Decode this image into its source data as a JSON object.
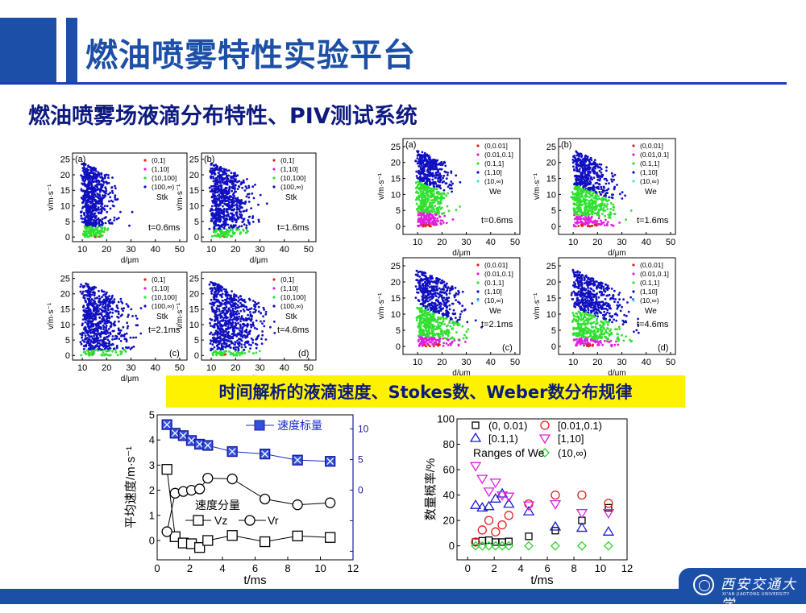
{
  "header": {
    "title": "燃油喷雾特性实验平台",
    "subtitle": "燃油喷雾场液滴分布特性、PIV测试系统"
  },
  "banner": {
    "text": "时间解析的液滴速度、Stokes数、Weber数分布规律"
  },
  "footer": {
    "logo_cn": "西安交通大学",
    "logo_en": "XI'AN JIAOTONG UNIVERSITY"
  },
  "colors": {
    "accent": "#1b4fa8",
    "title": "#1c4fa6",
    "subtitle": "#0d1a80",
    "banner": "#fff200",
    "red": "#e02020",
    "magenta": "#e020e0",
    "green": "#30e030",
    "blue": "#1010c0",
    "cyan": "#40e0e0"
  },
  "chart_data": [
    {
      "type": "scatter",
      "id": "stk-a",
      "panel": "(a)",
      "time": "t=0.6ms",
      "legend_title": "Stk",
      "legend": [
        "(0,1]",
        "(1,10]",
        "(10,100]",
        "(100,∞)"
      ],
      "xlabel": "d/μm",
      "ylabel": "v/m·s⁻¹",
      "xticks": [
        10,
        20,
        30,
        40,
        50
      ],
      "yticks": [
        0,
        5,
        10,
        15,
        20,
        25
      ],
      "xlim": [
        6,
        53
      ],
      "ylim": [
        -1.5,
        27
      ]
    },
    {
      "type": "scatter",
      "id": "stk-b",
      "panel": "(b)",
      "time": "t=1.6ms",
      "legend_title": "Stk",
      "legend": [
        "(0,1]",
        "(1,10]",
        "(10,100]",
        "(100,∞)"
      ],
      "xlabel": "d/μm",
      "ylabel": "v/m·s⁻¹",
      "xticks": [
        10,
        20,
        30,
        40,
        50
      ],
      "yticks": [
        0,
        5,
        10,
        15,
        20,
        25
      ],
      "xlim": [
        6,
        53
      ],
      "ylim": [
        -1.5,
        27
      ]
    },
    {
      "type": "scatter",
      "id": "stk-c",
      "panel": "(c)",
      "time": "t=2.1ms",
      "legend_title": "Stk",
      "legend": [
        "(0,1]",
        "(1,10]",
        "(10,100]",
        "(100,∞)"
      ],
      "xlabel": "d/μm",
      "ylabel": "v/m·s⁻¹",
      "xticks": [
        10,
        20,
        30,
        40,
        50
      ],
      "yticks": [
        0,
        5,
        10,
        15,
        20,
        25
      ],
      "xlim": [
        6,
        53
      ],
      "ylim": [
        -1.5,
        27
      ]
    },
    {
      "type": "scatter",
      "id": "stk-d",
      "panel": "(d)",
      "time": "t=4.6ms",
      "legend_title": "Stk",
      "legend": [
        "(0,1]",
        "(1,10]",
        "(10,100]",
        "(100,∞)"
      ],
      "xlabel": "d/μm",
      "ylabel": "v/m·s⁻¹",
      "xticks": [
        10,
        20,
        30,
        40,
        50
      ],
      "yticks": [
        0,
        5,
        10,
        15,
        20,
        25
      ],
      "xlim": [
        6,
        53
      ],
      "ylim": [
        -1.5,
        27
      ]
    },
    {
      "type": "scatter",
      "id": "we-a",
      "panel": "(a)",
      "time": "t=0.6ms",
      "legend_title": "We",
      "legend": [
        "(0,0.01]",
        "(0.01,0.1]",
        "(0.1,1]",
        "(1,10]",
        "(10,∞)"
      ],
      "xlabel": "d/μm",
      "ylabel": "v/m·s⁻¹",
      "xticks": [
        10,
        20,
        30,
        40,
        50
      ],
      "yticks": [
        0,
        5,
        10,
        15,
        20,
        25
      ],
      "xlim": [
        4,
        52
      ],
      "ylim": [
        -2.5,
        27.5
      ]
    },
    {
      "type": "scatter",
      "id": "we-b",
      "panel": "(b)",
      "time": "t=1.6ms",
      "legend_title": "We",
      "legend": [
        "(0,0.01]",
        "(0.01,0.1]",
        "(0.1,1]",
        "(1,10]",
        "(10,∞)"
      ],
      "xlabel": "d/μm",
      "ylabel": "v/m·s⁻¹",
      "xticks": [
        10,
        20,
        30,
        40,
        50
      ],
      "yticks": [
        0,
        5,
        10,
        15,
        20,
        25
      ],
      "xlim": [
        4,
        52
      ],
      "ylim": [
        -2.5,
        27.5
      ]
    },
    {
      "type": "scatter",
      "id": "we-c",
      "panel": "(c)",
      "time": "t=2.1ms",
      "legend_title": "We",
      "legend": [
        "(0,0.01]",
        "(0.01,0.1]",
        "(0.1,1]",
        "(1,10]",
        "(10,∞)"
      ],
      "xlabel": "d/μm",
      "ylabel": "v/m·s⁻¹",
      "xticks": [
        10,
        20,
        30,
        40,
        50
      ],
      "yticks": [
        0,
        5,
        10,
        15,
        20,
        25
      ],
      "xlim": [
        4,
        52
      ],
      "ylim": [
        -2.5,
        27.5
      ]
    },
    {
      "type": "scatter",
      "id": "we-d",
      "panel": "(d)",
      "time": "t=4.6ms",
      "legend_title": "We",
      "legend": [
        "(0,0.01]",
        "(0.01,0.1]",
        "(0.1,1]",
        "(1,10]",
        "(10,∞)"
      ],
      "xlabel": "d/μm",
      "ylabel": "v/m·s⁻¹",
      "xticks": [
        10,
        20,
        30,
        40,
        50
      ],
      "yticks": [
        0,
        5,
        10,
        15,
        20,
        25
      ],
      "xlim": [
        4,
        52
      ],
      "ylim": [
        -2.5,
        27.5
      ]
    },
    {
      "type": "line",
      "id": "velocity",
      "xlabel": "t/ms",
      "ylabel": "平均速度/m·s⁻¹",
      "xlim": [
        0,
        12
      ],
      "ylim": [
        -0.77,
        5
      ],
      "xticks": [
        0,
        2,
        4,
        6,
        8,
        10,
        12
      ],
      "yticks": [
        0,
        1,
        2,
        3,
        4,
        5
      ],
      "y2lim": [
        -11.4,
        12.3
      ],
      "y2ticks": [
        -10,
        -5,
        0,
        5,
        10
      ],
      "y2ticklabels": [
        "",
        "",
        "0",
        "5",
        "10"
      ],
      "x": [
        0.6,
        1.1,
        1.6,
        2.1,
        2.6,
        3.1,
        4.6,
        6.6,
        8.6,
        10.6
      ],
      "legend_group": "速度分量",
      "series": [
        {
          "name": "Vz",
          "axis": "left",
          "marker": "square",
          "values": [
            2.83,
            0.15,
            -0.1,
            -0.13,
            -0.28,
            0,
            0.2,
            -0.05,
            0.18,
            0.12
          ]
        },
        {
          "name": "Vr",
          "axis": "left",
          "marker": "circle",
          "values": [
            0.35,
            1.88,
            1.95,
            2.0,
            2.05,
            2.48,
            2.45,
            1.65,
            1.42,
            1.5
          ]
        },
        {
          "name": "速度标量",
          "axis": "right",
          "marker": "square-x",
          "values": [
            10.7,
            9.3,
            8.9,
            8.1,
            7.5,
            7.3,
            6.3,
            5.9,
            4.9,
            4.7
          ]
        }
      ]
    },
    {
      "type": "scatter",
      "id": "we-probability",
      "xlabel": "t/ms",
      "ylabel": "数量概率/%",
      "xlim": [
        -0.8,
        12
      ],
      "ylim": [
        -11,
        100
      ],
      "xticks": [
        0,
        2,
        4,
        6,
        8,
        10,
        12
      ],
      "yticks": [
        0,
        20,
        40,
        60,
        80,
        100
      ],
      "legend_title": "Ranges of We",
      "x": [
        0.6,
        1.1,
        1.6,
        2.1,
        2.6,
        3.1,
        4.6,
        6.6,
        8.6,
        10.6
      ],
      "series": [
        {
          "name": "(0, 0.01)",
          "marker": "square",
          "color": "#000000",
          "values": [
            3,
            4,
            4.5,
            3,
            3,
            3.5,
            7.5,
            12,
            20,
            30
          ]
        },
        {
          "name": "[0.01,0.1)",
          "marker": "circle",
          "color": "#e02020",
          "values": [
            3,
            12.5,
            20,
            11,
            16.5,
            24,
            33,
            40,
            40,
            33.5
          ]
        },
        {
          "name": "[0.1,1)",
          "marker": "triangle-up",
          "color": "#1a1ad0",
          "values": [
            32,
            30,
            31,
            37,
            41,
            33,
            27,
            15,
            14,
            11
          ]
        },
        {
          "name": "[1,10]",
          "marker": "triangle-down",
          "color": "#e020e0",
          "values": [
            63,
            53,
            43,
            50,
            40,
            39,
            32,
            33,
            26,
            26
          ]
        },
        {
          "name": "(10,∞)",
          "marker": "diamond",
          "color": "#30d030",
          "values": [
            0,
            0,
            0,
            0,
            0,
            0,
            0,
            0,
            0,
            0
          ]
        }
      ]
    }
  ]
}
